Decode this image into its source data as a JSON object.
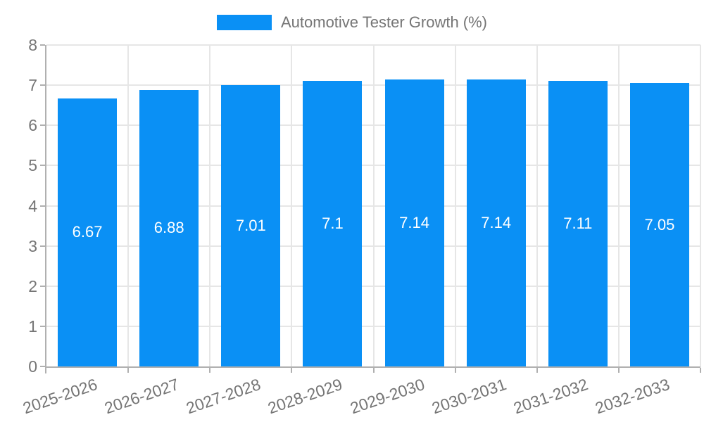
{
  "chart_data": {
    "type": "bar",
    "title": "Automotive Tester Growth (%)",
    "legend": {
      "position": "top",
      "label": "Automotive Tester Growth (%)"
    },
    "categories": [
      "2025-2026",
      "2026-2027",
      "2027-2028",
      "2028-2029",
      "2029-2030",
      "2030-2031",
      "2031-2032",
      "2032-2033"
    ],
    "series": [
      {
        "name": "Automotive Tester Growth (%)",
        "values": [
          6.67,
          6.88,
          7.01,
          7.1,
          7.14,
          7.14,
          7.11,
          7.05
        ]
      }
    ],
    "value_labels": [
      "6.67",
      "6.88",
      "7.01",
      "7.1",
      "7.14",
      "7.14",
      "7.11",
      "7.05"
    ],
    "xlabel": "",
    "ylabel": "",
    "ylim": [
      0,
      8
    ],
    "yticks": [
      0,
      1,
      2,
      3,
      4,
      5,
      6,
      7,
      8
    ],
    "grid": true,
    "colors": {
      "bar": "#0a90f5",
      "gridline": "#e6e6e6",
      "axis_line": "#b0b0b0",
      "axis_text": "#757575",
      "value_text": "#ffffff",
      "background": "#ffffff"
    }
  }
}
